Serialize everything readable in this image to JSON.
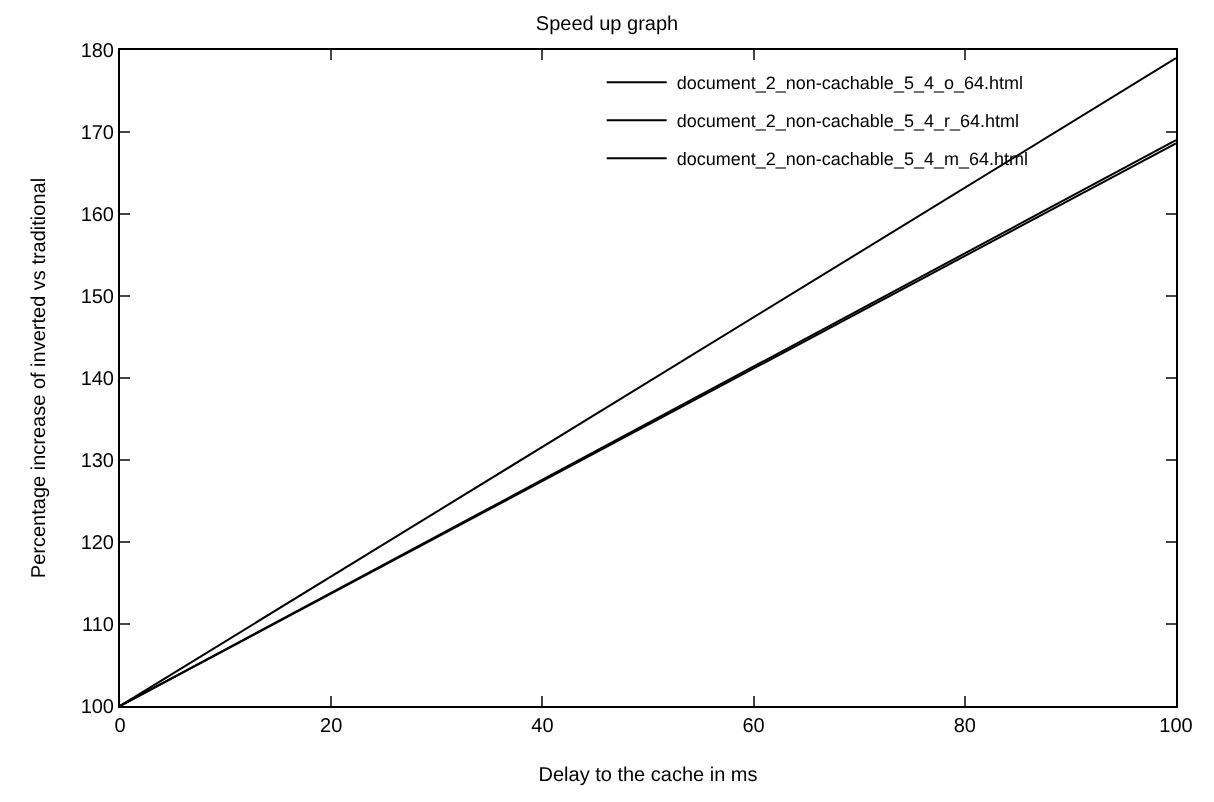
{
  "chart_data": {
    "type": "line",
    "title": "Speed up graph",
    "xlabel": "Delay to the cache in ms",
    "ylabel": "Percentage increase of inverted vs traditional",
    "x": [
      0,
      100
    ],
    "series": [
      {
        "name": "document_2_non-cachable_5_4_o_64.html",
        "color": "#000000",
        "values": [
          100,
          179
        ]
      },
      {
        "name": "document_2_non-cachable_5_4_r_64.html",
        "color": "#000000",
        "values": [
          100,
          169
        ]
      },
      {
        "name": "document_2_non-cachable_5_4_m_64.html",
        "color": "#000000",
        "values": [
          100,
          168.6
        ]
      }
    ],
    "xlim": [
      0,
      100
    ],
    "xticks": [
      0,
      20,
      40,
      60,
      80,
      100
    ],
    "ylim": [
      100,
      180
    ],
    "yticks": [
      100,
      110,
      120,
      130,
      140,
      150,
      160,
      170,
      180
    ],
    "grid": false,
    "legend": "top right",
    "marker": "none",
    "line_style": "solid"
  }
}
